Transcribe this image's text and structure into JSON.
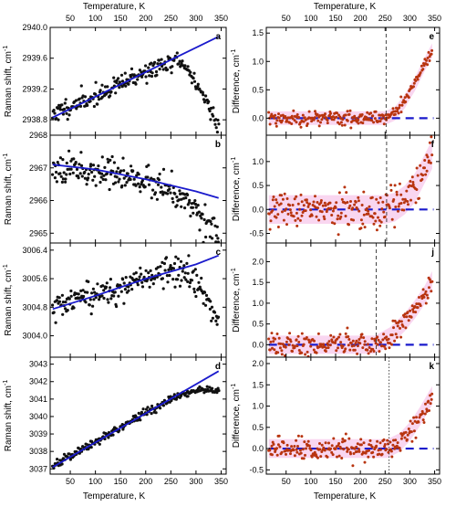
{
  "figure": {
    "top_axis_title": "Temperature, K",
    "bottom_axis_title": "Temperature, K"
  },
  "colors": {
    "raman_points": "#111111",
    "fit_line": "#1a1acc",
    "diff_points": "#b8340f",
    "zero_line": "#1a1acc",
    "band": "#f7c4ea",
    "vline": "#333333"
  },
  "x_axis": {
    "ticks": [
      50,
      100,
      150,
      200,
      250,
      300,
      350
    ],
    "tick_labels": [
      "50",
      "100",
      "150",
      "200",
      "250",
      "300",
      "350"
    ],
    "range": [
      10,
      360
    ]
  },
  "chart_data": [
    {
      "id": "a",
      "panel_label": "a",
      "type": "scatter",
      "ylabel": "Raman shift, cm",
      "ylabel_sup": "-1",
      "ylim": [
        2938.6,
        2940.0
      ],
      "yticks": [
        2938.8,
        2939.2,
        2939.6,
        2940.0
      ],
      "ytick_labels": [
        "2938.8",
        "2939.2",
        "2939.6",
        "2940.0"
      ],
      "x_range": [
        15,
        345
      ],
      "line": {
        "x": [
          15,
          345
        ],
        "y": [
          2938.83,
          2939.88
        ]
      },
      "trend": {
        "x": [
          15,
          100,
          200,
          260,
          280,
          300,
          320,
          345
        ],
        "y": [
          2938.88,
          2939.1,
          2939.42,
          2939.57,
          2939.48,
          2939.28,
          2939.05,
          2938.72
        ]
      },
      "noise": 0.06,
      "seed": 11
    },
    {
      "id": "b",
      "panel_label": "b",
      "type": "scatter",
      "ylabel": "Raman shift, cm",
      "ylabel_sup": "-1",
      "ylim": [
        2964.7,
        2968.0
      ],
      "yticks": [
        2965,
        2966,
        2967,
        2968
      ],
      "ytick_labels": [
        "2965",
        "2966",
        "2967",
        "2968"
      ],
      "x_range": [
        15,
        345
      ],
      "line": {
        "x": [
          15,
          100,
          200,
          300,
          345
        ],
        "y": [
          2967.1,
          2966.95,
          2966.65,
          2966.28,
          2966.08
        ]
      },
      "trend": {
        "x": [
          15,
          100,
          200,
          250,
          280,
          310,
          330,
          345
        ],
        "y": [
          2967.08,
          2966.92,
          2966.6,
          2966.35,
          2966.05,
          2965.6,
          2965.25,
          2964.95
        ]
      },
      "noise": 0.22,
      "seed": 23
    },
    {
      "id": "c",
      "panel_label": "c",
      "type": "scatter",
      "ylabel": "Raman shift, cm",
      "ylabel_sup": "-1",
      "ylim": [
        3003.4,
        3006.6
      ],
      "yticks": [
        3004.0,
        3004.8,
        3005.6,
        3006.4
      ],
      "ytick_labels": [
        "3004.0",
        "3004.8",
        "3005.6",
        "3006.4"
      ],
      "x_range": [
        15,
        345
      ],
      "line": {
        "x": [
          15,
          100,
          200,
          300,
          345
        ],
        "y": [
          3004.75,
          3005.12,
          3005.6,
          3006.0,
          3006.25
        ]
      },
      "trend": {
        "x": [
          15,
          100,
          200,
          260,
          290,
          310,
          330,
          345
        ],
        "y": [
          3004.75,
          3005.12,
          3005.6,
          3005.85,
          3005.6,
          3005.25,
          3004.85,
          3004.4
        ]
      },
      "noise": 0.2,
      "seed": 37
    },
    {
      "id": "d",
      "panel_label": "d",
      "type": "scatter",
      "ylabel": "Raman shift, cm",
      "ylabel_sup": "-1",
      "ylim": [
        3036.7,
        3043.4
      ],
      "yticks": [
        3037,
        3038,
        3039,
        3040,
        3041,
        3042,
        3043
      ],
      "ytick_labels": [
        "3037",
        "3038",
        "3039",
        "3040",
        "3041",
        "3042",
        "3043"
      ],
      "x_range": [
        15,
        345
      ],
      "line": {
        "x": [
          15,
          345
        ],
        "y": [
          3037.1,
          3042.6
        ]
      },
      "trend": {
        "x": [
          15,
          100,
          200,
          260,
          300,
          345
        ],
        "y": [
          3037.15,
          3038.55,
          3040.2,
          3041.15,
          3041.45,
          3041.5
        ]
      },
      "noise": 0.12,
      "seed": 41
    },
    {
      "id": "e",
      "panel_label": "e",
      "type": "scatter",
      "ylabel": "Difference, cm",
      "ylabel_sup": "-1",
      "ylim": [
        -0.3,
        1.6
      ],
      "yticks": [
        0.0,
        0.5,
        1.0,
        1.5
      ],
      "ytick_labels": [
        "0.0",
        "0.5",
        "1.0",
        "1.5"
      ],
      "x_range": [
        15,
        345
      ],
      "vline_x": 252,
      "vline_style": "dashed",
      "zero_line": {
        "x": [
          15,
          348
        ],
        "y": [
          0,
          0
        ]
      },
      "trend": {
        "x": [
          15,
          250,
          270,
          290,
          310,
          330,
          345
        ],
        "y": [
          0,
          0,
          0.08,
          0.3,
          0.6,
          0.95,
          1.2
        ]
      },
      "noise": 0.06,
      "band": 0.12,
      "seed": 53
    },
    {
      "id": "f",
      "panel_label": "f",
      "type": "scatter",
      "ylabel": "Difference, cm",
      "ylabel_sup": "-1",
      "ylim": [
        -0.7,
        1.55
      ],
      "yticks": [
        -0.5,
        0.0,
        0.5,
        1.0
      ],
      "ytick_labels": [
        "-0.5",
        "0.0",
        "0.5",
        "1.0"
      ],
      "x_range": [
        15,
        345
      ],
      "vline_x": 253,
      "vline_style": "dashed",
      "zero_line": {
        "x": [
          15,
          348
        ],
        "y": [
          0,
          0
        ]
      },
      "trend": {
        "x": [
          15,
          250,
          270,
          290,
          310,
          330,
          345
        ],
        "y": [
          0,
          0,
          0.05,
          0.2,
          0.45,
          0.85,
          1.15
        ]
      },
      "noise": 0.18,
      "band": 0.3,
      "seed": 67
    },
    {
      "id": "j",
      "panel_label": "j",
      "type": "scatter",
      "ylabel": "Difference, cm",
      "ylabel_sup": "-1",
      "ylim": [
        -0.3,
        2.45
      ],
      "yticks": [
        0.0,
        0.5,
        1.0,
        1.5,
        2.0
      ],
      "ytick_labels": [
        "0.0",
        "0.5",
        "1.0",
        "1.5",
        "2.0"
      ],
      "x_range": [
        15,
        345
      ],
      "vline_x": 232,
      "vline_style": "dashed",
      "zero_line": {
        "x": [
          15,
          348
        ],
        "y": [
          0,
          0
        ]
      },
      "trend": {
        "x": [
          15,
          230,
          260,
          290,
          310,
          330,
          345
        ],
        "y": [
          0,
          0,
          0.2,
          0.55,
          0.85,
          1.2,
          1.55
        ]
      },
      "noise": 0.13,
      "band": 0.22,
      "seed": 79
    },
    {
      "id": "k",
      "panel_label": "k",
      "type": "scatter",
      "ylabel": "Difference, cm",
      "ylabel_sup": "-1",
      "ylim": [
        -0.6,
        2.15
      ],
      "yticks": [
        -0.5,
        0.0,
        0.5,
        1.0,
        1.5,
        2.0
      ],
      "ytick_labels": [
        "-0.5",
        "0.0",
        "0.5",
        "1.0",
        "1.5",
        "2.0"
      ],
      "top_tick_label": "2.0",
      "x_range": [
        15,
        345
      ],
      "vline_x": 258,
      "vline_style": "dotted",
      "zero_line": {
        "x": [
          15,
          348
        ],
        "y": [
          0,
          0
        ]
      },
      "trend": {
        "x": [
          15,
          255,
          280,
          300,
          320,
          335,
          345
        ],
        "y": [
          0,
          0,
          0.15,
          0.4,
          0.75,
          1.05,
          1.25
        ]
      },
      "noise": 0.12,
      "band": 0.22,
      "seed": 83
    }
  ]
}
